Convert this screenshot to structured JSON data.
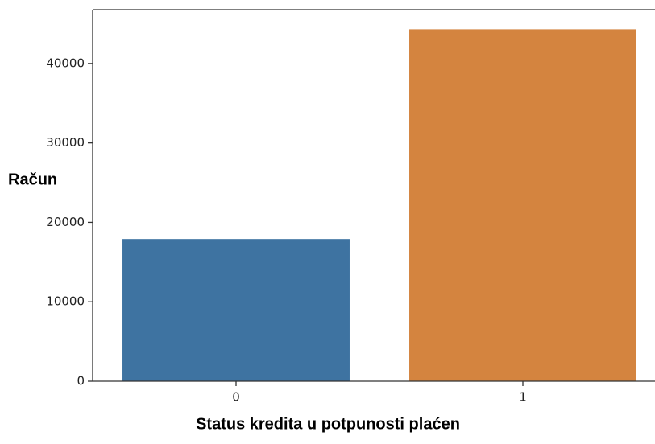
{
  "chart_data": {
    "type": "bar",
    "xlabel": "Status kredita u potpunosti plaćen",
    "ylabel": "Račun",
    "categories": [
      "0",
      "1"
    ],
    "values": [
      17900,
      44300
    ],
    "colors": [
      "#3e73a1",
      "#d4843f"
    ],
    "ylim": [
      0,
      46770
    ],
    "yticks": [
      0,
      10000,
      20000,
      30000,
      40000
    ],
    "grid": false
  }
}
